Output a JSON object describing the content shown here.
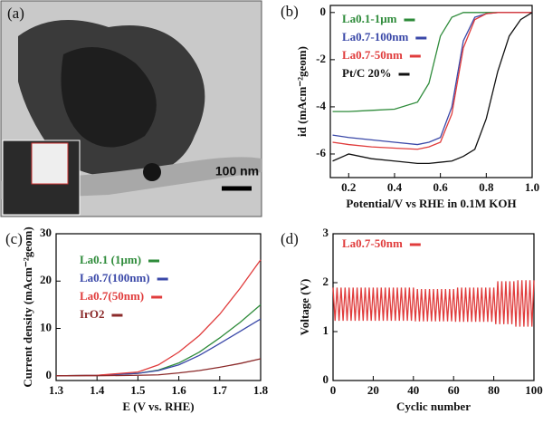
{
  "image_panel": {
    "label": "(a)",
    "scale_bar": "100 nm"
  },
  "chart_data": [
    {
      "type": "line",
      "label": "(b)",
      "x_label": "Potential/V vs RHE in 0.1M KOH",
      "y_label": "id (mAcm⁻²geom)",
      "x": [
        0.13,
        0.2,
        0.3,
        0.4,
        0.5,
        0.55,
        0.6,
        0.65,
        0.7,
        0.75,
        0.8,
        0.85,
        0.9,
        0.95,
        1.0
      ],
      "xlim": [
        0.12,
        1.0
      ],
      "ylim": [
        -7,
        0.3
      ],
      "xticks": [
        0.2,
        0.4,
        0.6,
        0.8,
        {
          "value": 1,
          "label": "1.0"
        }
      ],
      "yticks": [
        0,
        -2,
        -4,
        -6
      ],
      "series": [
        {
          "name": "La0.1-1μm",
          "color": "#2e8b3a",
          "values": [
            -4.2,
            -4.2,
            -4.15,
            -4.1,
            -3.8,
            -3.0,
            -1.0,
            -0.2,
            0,
            0,
            0,
            0,
            0,
            0,
            0
          ]
        },
        {
          "name": "La0.7-100nm",
          "color": "#3a48a8",
          "values": [
            -5.2,
            -5.3,
            -5.4,
            -5.5,
            -5.6,
            -5.5,
            -5.3,
            -4.0,
            -1.2,
            -0.2,
            -0.05,
            0,
            0,
            0,
            0
          ]
        },
        {
          "name": "La0.7-50nm",
          "color": "#e03c3c",
          "values": [
            -5.5,
            -5.6,
            -5.7,
            -5.75,
            -5.8,
            -5.7,
            -5.5,
            -4.3,
            -1.5,
            -0.3,
            -0.05,
            0,
            0,
            0,
            0
          ]
        },
        {
          "name": "Pt/C 20%",
          "color": "#111111",
          "values": [
            -6.3,
            -6.0,
            -6.2,
            -6.3,
            -6.4,
            -6.4,
            -6.35,
            -6.3,
            -6.1,
            -5.8,
            -4.5,
            -2.5,
            -1.0,
            -0.3,
            0
          ]
        }
      ]
    },
    {
      "type": "line",
      "label": "(c)",
      "x_label": "E (V vs. RHE)",
      "y_label": "Current density (mAcm⁻²geom)",
      "x": [
        1.3,
        1.4,
        1.5,
        1.55,
        1.6,
        1.65,
        1.7,
        1.75,
        1.8
      ],
      "xlim": [
        1.3,
        1.8
      ],
      "ylim": [
        -1,
        30
      ],
      "xticks": [
        1.3,
        1.4,
        1.5,
        1.6,
        1.7,
        1.8
      ],
      "yticks": [
        0,
        10,
        20,
        30
      ],
      "series": [
        {
          "name": "La0.1 (1μm)",
          "color": "#2e8b3a",
          "values": [
            0,
            0.1,
            0.5,
            1.2,
            2.7,
            5,
            8,
            11.3,
            15
          ]
        },
        {
          "name": "La0.7(100nm)",
          "color": "#3a48a8",
          "values": [
            0,
            0.1,
            0.5,
            1.1,
            2.3,
            4.3,
            6.8,
            9.4,
            12
          ]
        },
        {
          "name": "La0.7(50nm)",
          "color": "#e03c3c",
          "values": [
            0,
            0.1,
            0.8,
            2.3,
            5,
            8.5,
            13,
            18.5,
            24.5
          ]
        },
        {
          "name": "IrO2",
          "color": "#8b2a2a",
          "values": [
            0,
            0,
            0.1,
            0.2,
            0.6,
            1.1,
            1.8,
            2.6,
            3.6
          ]
        }
      ]
    },
    {
      "type": "line",
      "label": "(d)",
      "x_label": "Cyclic number",
      "y_label": "Voltage (V)",
      "x": [
        0,
        1,
        2,
        3,
        4,
        5,
        6,
        7,
        8,
        9,
        10,
        11,
        12,
        13,
        14,
        15,
        16,
        17,
        18,
        19,
        20,
        21,
        22,
        23,
        24,
        25,
        26,
        27,
        28,
        29,
        30,
        31,
        32,
        33,
        34,
        35,
        36,
        37,
        38,
        39,
        40,
        41,
        42,
        43,
        44,
        45,
        46,
        47,
        48,
        49,
        50,
        51,
        52,
        53,
        54,
        55,
        56,
        57,
        58,
        59,
        60,
        61,
        62,
        63,
        64,
        65,
        66,
        67,
        68,
        69,
        70,
        71,
        72,
        73,
        74,
        75,
        76,
        77,
        78,
        79,
        80,
        81,
        82,
        83,
        84,
        85,
        86,
        87,
        88,
        89,
        90,
        91,
        92,
        93,
        94,
        95,
        96,
        97,
        98,
        99,
        100
      ],
      "xlim": [
        0,
        100
      ],
      "ylim": [
        0,
        3
      ],
      "xticks": [
        0,
        20,
        40,
        60,
        80,
        100
      ],
      "yticks": [
        0,
        1,
        2,
        3
      ],
      "series": [
        {
          "name": "La0.7-50nm",
          "color": "#e03c3c",
          "values": [
            1.9,
            1.22,
            1.9,
            1.22,
            1.9,
            1.22,
            1.9,
            1.22,
            1.9,
            1.22,
            1.9,
            1.22,
            1.9,
            1.22,
            1.9,
            1.22,
            1.9,
            1.22,
            1.9,
            1.22,
            1.9,
            1.22,
            1.9,
            1.22,
            1.9,
            1.22,
            1.9,
            1.22,
            1.9,
            1.22,
            1.9,
            1.22,
            1.9,
            1.22,
            1.9,
            1.22,
            1.9,
            1.22,
            1.9,
            1.22,
            1.9,
            1.21,
            1.87,
            1.21,
            1.87,
            1.21,
            1.87,
            1.21,
            1.87,
            1.21,
            1.87,
            1.21,
            1.87,
            1.21,
            1.87,
            1.21,
            1.87,
            1.21,
            1.87,
            1.21,
            1.87,
            1.2,
            1.9,
            1.2,
            1.9,
            1.2,
            1.9,
            1.2,
            1.9,
            1.2,
            1.9,
            1.2,
            1.9,
            1.2,
            1.9,
            1.2,
            1.9,
            1.2,
            1.9,
            1.2,
            1.9,
            1.15,
            2.03,
            1.15,
            2.03,
            1.15,
            2.03,
            1.15,
            2.03,
            1.15,
            2.03,
            1.1,
            2.05,
            1.1,
            2.05,
            1.1,
            2.05,
            1.1,
            2.05,
            1.1,
            2.05
          ]
        }
      ]
    }
  ]
}
